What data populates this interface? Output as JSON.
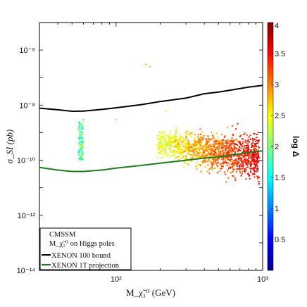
{
  "chart_data": {
    "type": "scatter",
    "xlabel": "M_χ̃₁⁰ (GeV)",
    "ylabel": "σ_SI (pb)",
    "xscale": "log",
    "yscale": "log",
    "xlim": [
      30,
      1000
    ],
    "ylim": [
      1e-14,
      1e-05
    ],
    "grid": false,
    "x_ticks": [
      {
        "value": 100,
        "label": "10²"
      },
      {
        "value": 1000,
        "label": "10³"
      }
    ],
    "y_ticks": [
      {
        "value": 1e-06,
        "label": "10⁻⁶"
      },
      {
        "value": 1e-08,
        "label": "10⁻⁸"
      },
      {
        "value": 1e-10,
        "label": "10⁻¹⁰"
      },
      {
        "value": 1e-12,
        "label": "10⁻¹²"
      },
      {
        "value": 1e-14,
        "label": "10⁻¹⁴"
      }
    ],
    "colorbar": {
      "label": "log Δ",
      "range": [
        0,
        4
      ],
      "ticks": [
        0.5,
        1,
        1.5,
        2,
        2.5,
        3,
        3.5,
        4
      ],
      "tick_labels": [
        "0.5",
        "1",
        "1.5",
        "2",
        "2.5",
        "3",
        "3.5",
        "4"
      ],
      "colormap": "jet"
    },
    "series": [
      {
        "name": "XENON 100 bound",
        "type": "line",
        "color": "#000000",
        "x": [
          30,
          40,
          50,
          60,
          80,
          100,
          150,
          200,
          300,
          400,
          500,
          600,
          800,
          1000
        ],
        "y": [
          7.8e-09,
          6.8e-09,
          6e-09,
          6.1e-09,
          7e-09,
          8e-09,
          1.05e-08,
          1.35e-08,
          1.8e-08,
          2.6e-08,
          3e-08,
          3.5e-08,
          4.5e-08,
          5.2e-08
        ]
      },
      {
        "name": "XENON 1T projection",
        "type": "line",
        "color": "#1f7a1f",
        "x": [
          30,
          40,
          50,
          60,
          80,
          100,
          150,
          200,
          300,
          400,
          500,
          600,
          800,
          1000
        ],
        "y": [
          5.5e-11,
          4.4e-11,
          3.9e-11,
          3.9e-11,
          4.4e-11,
          5.2e-11,
          6.5e-11,
          7.8e-11,
          1e-10,
          1.2e-10,
          1.3e-10,
          1.5e-10,
          1.9e-10,
          2.2e-10
        ]
      }
    ],
    "scatter_regions": [
      {
        "description_color_logDelta": [
          1.2,
          2.4
        ],
        "x_range": [
          55,
          60
        ],
        "y_range": [
          1e-10,
          4e-09
        ]
      },
      {
        "description_color_logDelta": [
          1.5,
          4.0
        ],
        "x_range": [
          190,
          950
        ],
        "y_range": [
          3e-12,
          5e-09
        ]
      }
    ],
    "legend": {
      "placement": "lower-left",
      "title_lines": [
        "CMSSM",
        "M_χ̃₁⁰ on Higgs poles"
      ],
      "entries": [
        "XENON 100 bound",
        "XENON 1T projection"
      ]
    }
  }
}
